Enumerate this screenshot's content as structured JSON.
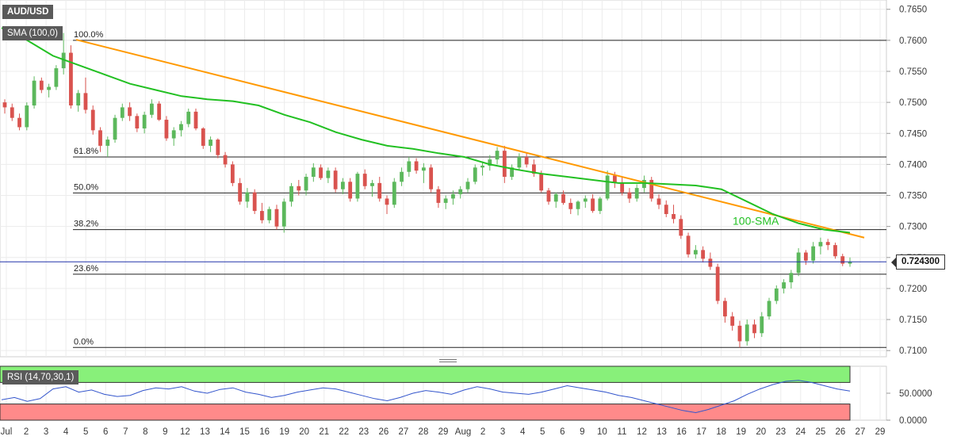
{
  "header": {
    "symbol": "AUD/USD",
    "indicator_label": "SMA (100,0)",
    "rsi_label": "RSI (14,70,30,1)"
  },
  "current_price": "0.724300",
  "colors": {
    "bull": "#5cb85c",
    "bear": "#d9534f",
    "sma": "#22c022",
    "trendline": "#ff9900",
    "rsi_line": "#3355cc",
    "rsi_overbought": "#88f07a",
    "rsi_oversold": "#ff8a8a"
  },
  "chart_data": [
    {
      "type": "candlestick",
      "title": "AUD/USD",
      "ylim": [
        0.709,
        0.7665
      ],
      "y_ticks": [
        "0.7650",
        "0.7600",
        "0.7550",
        "0.7500",
        "0.7450",
        "0.7400",
        "0.7350",
        "0.7300",
        "0.7250",
        "0.7200",
        "0.7150",
        "0.7100"
      ],
      "x_ticks": [
        "Jul",
        "2",
        "3",
        "4",
        "5",
        "6",
        "7",
        "8",
        "9",
        "12",
        "13",
        "14",
        "15",
        "16",
        "19",
        "20",
        "21",
        "22",
        "23",
        "26",
        "27",
        "28",
        "29",
        "Aug",
        "2",
        "3",
        "4",
        "5",
        "6",
        "9",
        "10",
        "11",
        "12",
        "13",
        "16",
        "17",
        "18",
        "19",
        "20",
        "23",
        "24",
        "25",
        "26",
        "27",
        "29"
      ],
      "fibonacci": [
        {
          "label": "100.0%",
          "value": 0.76
        },
        {
          "label": "61.8%",
          "value": 0.7412
        },
        {
          "label": "50.0%",
          "value": 0.7354
        },
        {
          "label": "38.2%",
          "value": 0.7295
        },
        {
          "label": "23.6%",
          "value": 0.7223
        },
        {
          "label": "0.0%",
          "value": 0.7105
        }
      ],
      "sma_100": {
        "label": "100-SMA",
        "values": [
          0.762,
          0.76,
          0.7575,
          0.756,
          0.7545,
          0.753,
          0.752,
          0.751,
          0.7505,
          0.7502,
          0.7495,
          0.748,
          0.7468,
          0.7452,
          0.744,
          0.743,
          0.7425,
          0.7418,
          0.7412,
          0.74,
          0.7392,
          0.7385,
          0.738,
          0.7375,
          0.737,
          0.737,
          0.7368,
          0.7366,
          0.736,
          0.734,
          0.732,
          0.7305,
          0.7295,
          0.729
        ]
      },
      "trendline": {
        "start": 0.7601,
        "end": 0.7282
      },
      "candles": [
        [
          0.75,
          0.7505,
          0.7482,
          0.7492
        ],
        [
          0.7492,
          0.7498,
          0.747,
          0.7475
        ],
        [
          0.7475,
          0.7482,
          0.7455,
          0.746
        ],
        [
          0.746,
          0.75,
          0.7455,
          0.7495
        ],
        [
          0.7495,
          0.7542,
          0.749,
          0.7535
        ],
        [
          0.7535,
          0.754,
          0.7515,
          0.752
        ],
        [
          0.752,
          0.753,
          0.7508,
          0.7525
        ],
        [
          0.7525,
          0.756,
          0.752,
          0.7555
        ],
        [
          0.7555,
          0.7612,
          0.7545,
          0.758
        ],
        [
          0.758,
          0.7592,
          0.749,
          0.7495
        ],
        [
          0.7495,
          0.752,
          0.7485,
          0.7515
        ],
        [
          0.7515,
          0.754,
          0.7482,
          0.7488
        ],
        [
          0.7488,
          0.7495,
          0.7448,
          0.7455
        ],
        [
          0.7455,
          0.746,
          0.742,
          0.743
        ],
        [
          0.743,
          0.7445,
          0.7412,
          0.744
        ],
        [
          0.744,
          0.748,
          0.7435,
          0.7475
        ],
        [
          0.7475,
          0.7498,
          0.747,
          0.7492
        ],
        [
          0.7492,
          0.75,
          0.747,
          0.7478
        ],
        [
          0.7478,
          0.7482,
          0.7452,
          0.7458
        ],
        [
          0.7458,
          0.7485,
          0.745,
          0.748
        ],
        [
          0.748,
          0.7505,
          0.7475,
          0.7498
        ],
        [
          0.7498,
          0.7502,
          0.747,
          0.7472
        ],
        [
          0.7472,
          0.7478,
          0.7438,
          0.7442
        ],
        [
          0.7442,
          0.746,
          0.743,
          0.7455
        ],
        [
          0.7455,
          0.747,
          0.7445,
          0.7465
        ],
        [
          0.7465,
          0.749,
          0.746,
          0.7485
        ],
        [
          0.7485,
          0.749,
          0.7455,
          0.7458
        ],
        [
          0.7458,
          0.746,
          0.7425,
          0.743
        ],
        [
          0.743,
          0.7445,
          0.742,
          0.744
        ],
        [
          0.744,
          0.7442,
          0.741,
          0.7415
        ],
        [
          0.7415,
          0.742,
          0.7395,
          0.74
        ],
        [
          0.74,
          0.7405,
          0.7365,
          0.737
        ],
        [
          0.737,
          0.7378,
          0.7335,
          0.734
        ],
        [
          0.734,
          0.7362,
          0.733,
          0.7355
        ],
        [
          0.7355,
          0.736,
          0.732,
          0.7325
        ],
        [
          0.7325,
          0.7338,
          0.7305,
          0.731
        ],
        [
          0.731,
          0.7332,
          0.7305,
          0.7328
        ],
        [
          0.7328,
          0.7335,
          0.7295,
          0.73
        ],
        [
          0.73,
          0.7345,
          0.729,
          0.734
        ],
        [
          0.734,
          0.737,
          0.7332,
          0.7365
        ],
        [
          0.7365,
          0.7375,
          0.735,
          0.7358
        ],
        [
          0.7358,
          0.7385,
          0.735,
          0.738
        ],
        [
          0.738,
          0.7402,
          0.7372,
          0.7395
        ],
        [
          0.7395,
          0.74,
          0.7375,
          0.7378
        ],
        [
          0.7378,
          0.7395,
          0.737,
          0.739
        ],
        [
          0.739,
          0.7395,
          0.7355,
          0.736
        ],
        [
          0.736,
          0.7378,
          0.7352,
          0.7372
        ],
        [
          0.7372,
          0.7378,
          0.734,
          0.7345
        ],
        [
          0.7345,
          0.7388,
          0.734,
          0.7385
        ],
        [
          0.7385,
          0.7392,
          0.736,
          0.7365
        ],
        [
          0.7365,
          0.7375,
          0.7348,
          0.737
        ],
        [
          0.737,
          0.738,
          0.734,
          0.7345
        ],
        [
          0.7345,
          0.735,
          0.732,
          0.7335
        ],
        [
          0.7335,
          0.7378,
          0.733,
          0.7372
        ],
        [
          0.7372,
          0.7395,
          0.7365,
          0.7388
        ],
        [
          0.7388,
          0.7412,
          0.738,
          0.7405
        ],
        [
          0.7405,
          0.741,
          0.7385,
          0.739
        ],
        [
          0.739,
          0.7402,
          0.737,
          0.7395
        ],
        [
          0.7395,
          0.74,
          0.7355,
          0.736
        ],
        [
          0.736,
          0.7365,
          0.733,
          0.7338
        ],
        [
          0.7338,
          0.735,
          0.7328,
          0.7345
        ],
        [
          0.7345,
          0.7358,
          0.7335,
          0.7352
        ],
        [
          0.7352,
          0.7365,
          0.7345,
          0.736
        ],
        [
          0.736,
          0.7378,
          0.7355,
          0.7372
        ],
        [
          0.7372,
          0.74,
          0.7368,
          0.7395
        ],
        [
          0.7395,
          0.7405,
          0.7382,
          0.7398
        ],
        [
          0.7398,
          0.7415,
          0.739,
          0.7408
        ],
        [
          0.7408,
          0.7428,
          0.74,
          0.7422
        ],
        [
          0.7422,
          0.743,
          0.737,
          0.738
        ],
        [
          0.738,
          0.74,
          0.7375,
          0.7395
        ],
        [
          0.7395,
          0.7418,
          0.739,
          0.7412
        ],
        [
          0.7412,
          0.7418,
          0.7395,
          0.74
        ],
        [
          0.74,
          0.7408,
          0.738,
          0.7385
        ],
        [
          0.7385,
          0.739,
          0.7355,
          0.7358
        ],
        [
          0.7358,
          0.7362,
          0.7335,
          0.734
        ],
        [
          0.734,
          0.7355,
          0.733,
          0.7352
        ],
        [
          0.7352,
          0.7358,
          0.7335,
          0.7338
        ],
        [
          0.7338,
          0.7345,
          0.732,
          0.7328
        ],
        [
          0.7328,
          0.7342,
          0.7318,
          0.734
        ],
        [
          0.734,
          0.735,
          0.733,
          0.7345
        ],
        [
          0.7345,
          0.7352,
          0.7322,
          0.7325
        ],
        [
          0.7325,
          0.7348,
          0.732,
          0.7345
        ],
        [
          0.7345,
          0.739,
          0.7342,
          0.7382
        ],
        [
          0.7382,
          0.7388,
          0.7362,
          0.737
        ],
        [
          0.737,
          0.738,
          0.735,
          0.7355
        ],
        [
          0.7355,
          0.7362,
          0.7338,
          0.7345
        ],
        [
          0.7345,
          0.7368,
          0.734,
          0.7362
        ],
        [
          0.7362,
          0.7382,
          0.7355,
          0.7375
        ],
        [
          0.7375,
          0.738,
          0.734,
          0.7345
        ],
        [
          0.7345,
          0.7352,
          0.7328,
          0.7335
        ],
        [
          0.7335,
          0.7342,
          0.7315,
          0.732
        ],
        [
          0.732,
          0.7335,
          0.7305,
          0.7312
        ],
        [
          0.7312,
          0.7318,
          0.728,
          0.7285
        ],
        [
          0.7285,
          0.729,
          0.725,
          0.7255
        ],
        [
          0.7255,
          0.727,
          0.7248,
          0.7262
        ],
        [
          0.7262,
          0.7268,
          0.7242,
          0.7248
        ],
        [
          0.7248,
          0.7258,
          0.723,
          0.7235
        ],
        [
          0.7235,
          0.724,
          0.7175,
          0.718
        ],
        [
          0.718,
          0.7185,
          0.7145,
          0.7155
        ],
        [
          0.7155,
          0.7162,
          0.7132,
          0.714
        ],
        [
          0.714,
          0.7148,
          0.7105,
          0.7115
        ],
        [
          0.7115,
          0.715,
          0.7108,
          0.7142
        ],
        [
          0.7142,
          0.715,
          0.712,
          0.7128
        ],
        [
          0.7128,
          0.7162,
          0.7122,
          0.7155
        ],
        [
          0.7155,
          0.7185,
          0.715,
          0.718
        ],
        [
          0.718,
          0.7205,
          0.7175,
          0.72
        ],
        [
          0.72,
          0.7215,
          0.7192,
          0.721
        ],
        [
          0.721,
          0.723,
          0.72,
          0.7225
        ],
        [
          0.7225,
          0.7265,
          0.722,
          0.7258
        ],
        [
          0.7258,
          0.7262,
          0.7238,
          0.7245
        ],
        [
          0.7245,
          0.7275,
          0.724,
          0.7268
        ],
        [
          0.7268,
          0.7282,
          0.7255,
          0.7275
        ],
        [
          0.7275,
          0.728,
          0.7262,
          0.727
        ],
        [
          0.727,
          0.7274,
          0.7248,
          0.7252
        ],
        [
          0.7252,
          0.7256,
          0.7236,
          0.724
        ],
        [
          0.724,
          0.725,
          0.7235,
          0.7243
        ]
      ]
    },
    {
      "type": "line",
      "title": "RSI (14,70,30,1)",
      "ylim": [
        0,
        100
      ],
      "y_ticks": [
        "50.0000",
        "0.0000"
      ],
      "overbought": 70,
      "oversold": 30,
      "values": [
        38,
        42,
        35,
        40,
        58,
        62,
        52,
        56,
        48,
        44,
        46,
        55,
        60,
        58,
        62,
        54,
        50,
        57,
        60,
        52,
        48,
        42,
        46,
        52,
        56,
        60,
        58,
        52,
        46,
        40,
        36,
        42,
        50,
        55,
        52,
        48,
        56,
        62,
        58,
        52,
        50,
        48,
        52,
        58,
        64,
        60,
        56,
        52,
        46,
        42,
        36,
        30,
        24,
        18,
        14,
        20,
        28,
        36,
        48,
        58,
        66,
        72,
        74,
        70,
        64,
        58,
        54
      ]
    }
  ]
}
